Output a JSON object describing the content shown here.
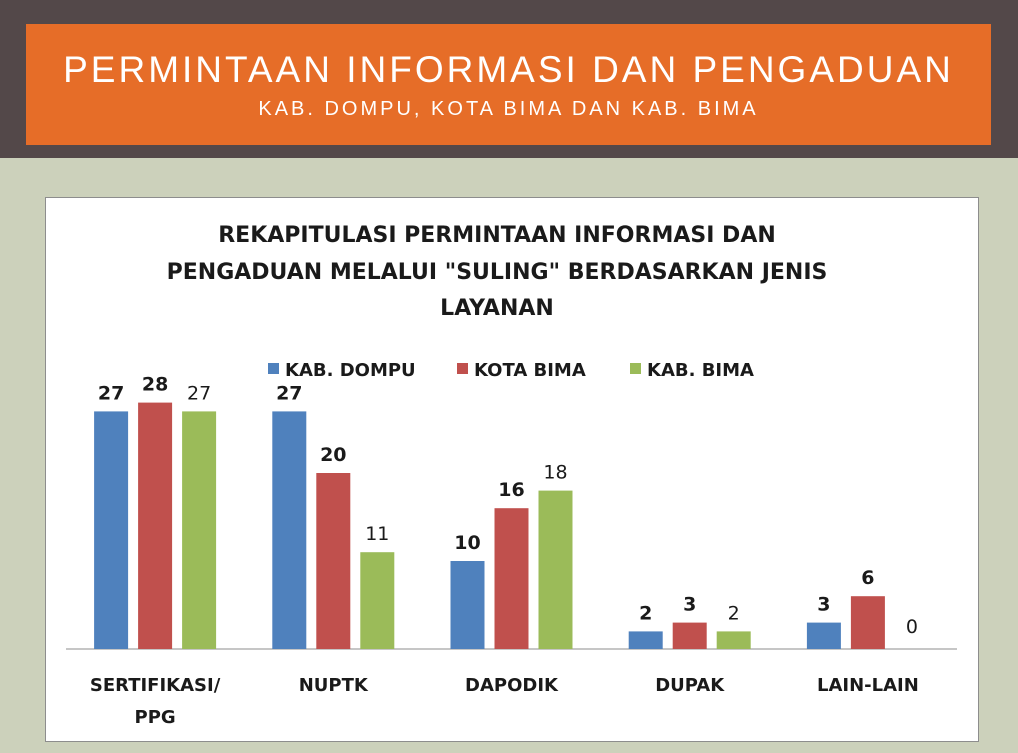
{
  "banner": {
    "title": "PERMINTAAN INFORMASI DAN PENGADUAN",
    "subtitle": "KAB. DOMPU, KOTA BIMA DAN KAB. BIMA"
  },
  "chart_data": {
    "type": "bar",
    "title_lines": [
      "REKAPITULASI PERMINTAAN INFORMASI DAN",
      "PENGADUAN MELALUI \"SULING\" BERDASARKAN JENIS",
      "LAYANAN"
    ],
    "categories": [
      [
        "SERTIFIKASI/",
        "PPG"
      ],
      [
        "NUPTK"
      ],
      [
        "DAPODIK"
      ],
      [
        "DUPAK"
      ],
      [
        "LAIN-LAIN"
      ]
    ],
    "series": [
      {
        "name": "KAB. DOMPU",
        "color": "#4f81bd",
        "values": [
          27,
          27,
          10,
          2,
          3
        ],
        "label_bold": true
      },
      {
        "name": "KOTA BIMA",
        "color": "#c0504d",
        "values": [
          28,
          20,
          16,
          3,
          6
        ],
        "label_bold": true
      },
      {
        "name": "KAB. BIMA",
        "color": "#9bbb59",
        "values": [
          27,
          11,
          18,
          2,
          0
        ],
        "label_bold": false
      }
    ],
    "ylim": [
      0,
      30
    ],
    "grid": false,
    "legend": "top"
  }
}
